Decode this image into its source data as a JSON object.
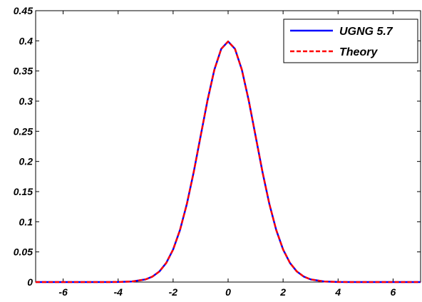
{
  "chart_data": {
    "type": "line",
    "title": "",
    "xlabel": "",
    "ylabel": "",
    "xlim": [
      -7,
      7
    ],
    "ylim": [
      0,
      0.45
    ],
    "xticks": [
      -6,
      -4,
      -2,
      0,
      2,
      4,
      6
    ],
    "xtick_labels": [
      "-6",
      "-4",
      "-2",
      "0",
      "2",
      "4",
      "6"
    ],
    "yticks": [
      0,
      0.05,
      0.1,
      0.15,
      0.2,
      0.25,
      0.3,
      0.35,
      0.4,
      0.45
    ],
    "ytick_labels": [
      "0",
      "0.05",
      "0.1",
      "0.15",
      "0.2",
      "0.25",
      "0.3",
      "0.35",
      "0.4",
      "0.45"
    ],
    "grid": false,
    "legend_position": "top-right",
    "series": [
      {
        "name": "UGNG 5.7",
        "color": "#0000ff",
        "style": "solid",
        "x": [
          -7,
          -6,
          -5,
          -4,
          -3.5,
          -3,
          -2.75,
          -2.5,
          -2.25,
          -2,
          -1.75,
          -1.5,
          -1.25,
          -1,
          -0.75,
          -0.5,
          -0.25,
          0,
          0.25,
          0.5,
          0.75,
          1,
          1.25,
          1.5,
          1.75,
          2,
          2.25,
          2.5,
          2.75,
          3,
          3.5,
          4,
          5,
          6,
          7
        ],
        "y": [
          0,
          0,
          0,
          0.0001,
          0.0009,
          0.0044,
          0.0091,
          0.0175,
          0.0317,
          0.054,
          0.0863,
          0.1295,
          0.1826,
          0.242,
          0.3011,
          0.3521,
          0.3867,
          0.399,
          0.3867,
          0.3521,
          0.3011,
          0.242,
          0.1826,
          0.1295,
          0.0863,
          0.054,
          0.0317,
          0.0175,
          0.0091,
          0.0044,
          0.0009,
          0.0001,
          0,
          0,
          0
        ]
      },
      {
        "name": "Theory",
        "color": "#ff0000",
        "style": "dashed",
        "x": [
          -7,
          -6,
          -5,
          -4,
          -3.5,
          -3,
          -2.75,
          -2.5,
          -2.25,
          -2,
          -1.75,
          -1.5,
          -1.25,
          -1,
          -0.75,
          -0.5,
          -0.25,
          0,
          0.25,
          0.5,
          0.75,
          1,
          1.25,
          1.5,
          1.75,
          2,
          2.25,
          2.5,
          2.75,
          3,
          3.5,
          4,
          5,
          6,
          7
        ],
        "y": [
          0,
          0,
          0,
          0.0001,
          0.0009,
          0.0044,
          0.0091,
          0.0175,
          0.0317,
          0.054,
          0.0863,
          0.1295,
          0.1826,
          0.242,
          0.3011,
          0.3521,
          0.3867,
          0.3989,
          0.3867,
          0.3521,
          0.3011,
          0.242,
          0.1826,
          0.1295,
          0.0863,
          0.054,
          0.0317,
          0.0175,
          0.0091,
          0.0044,
          0.0009,
          0.0001,
          0,
          0,
          0
        ]
      }
    ]
  }
}
